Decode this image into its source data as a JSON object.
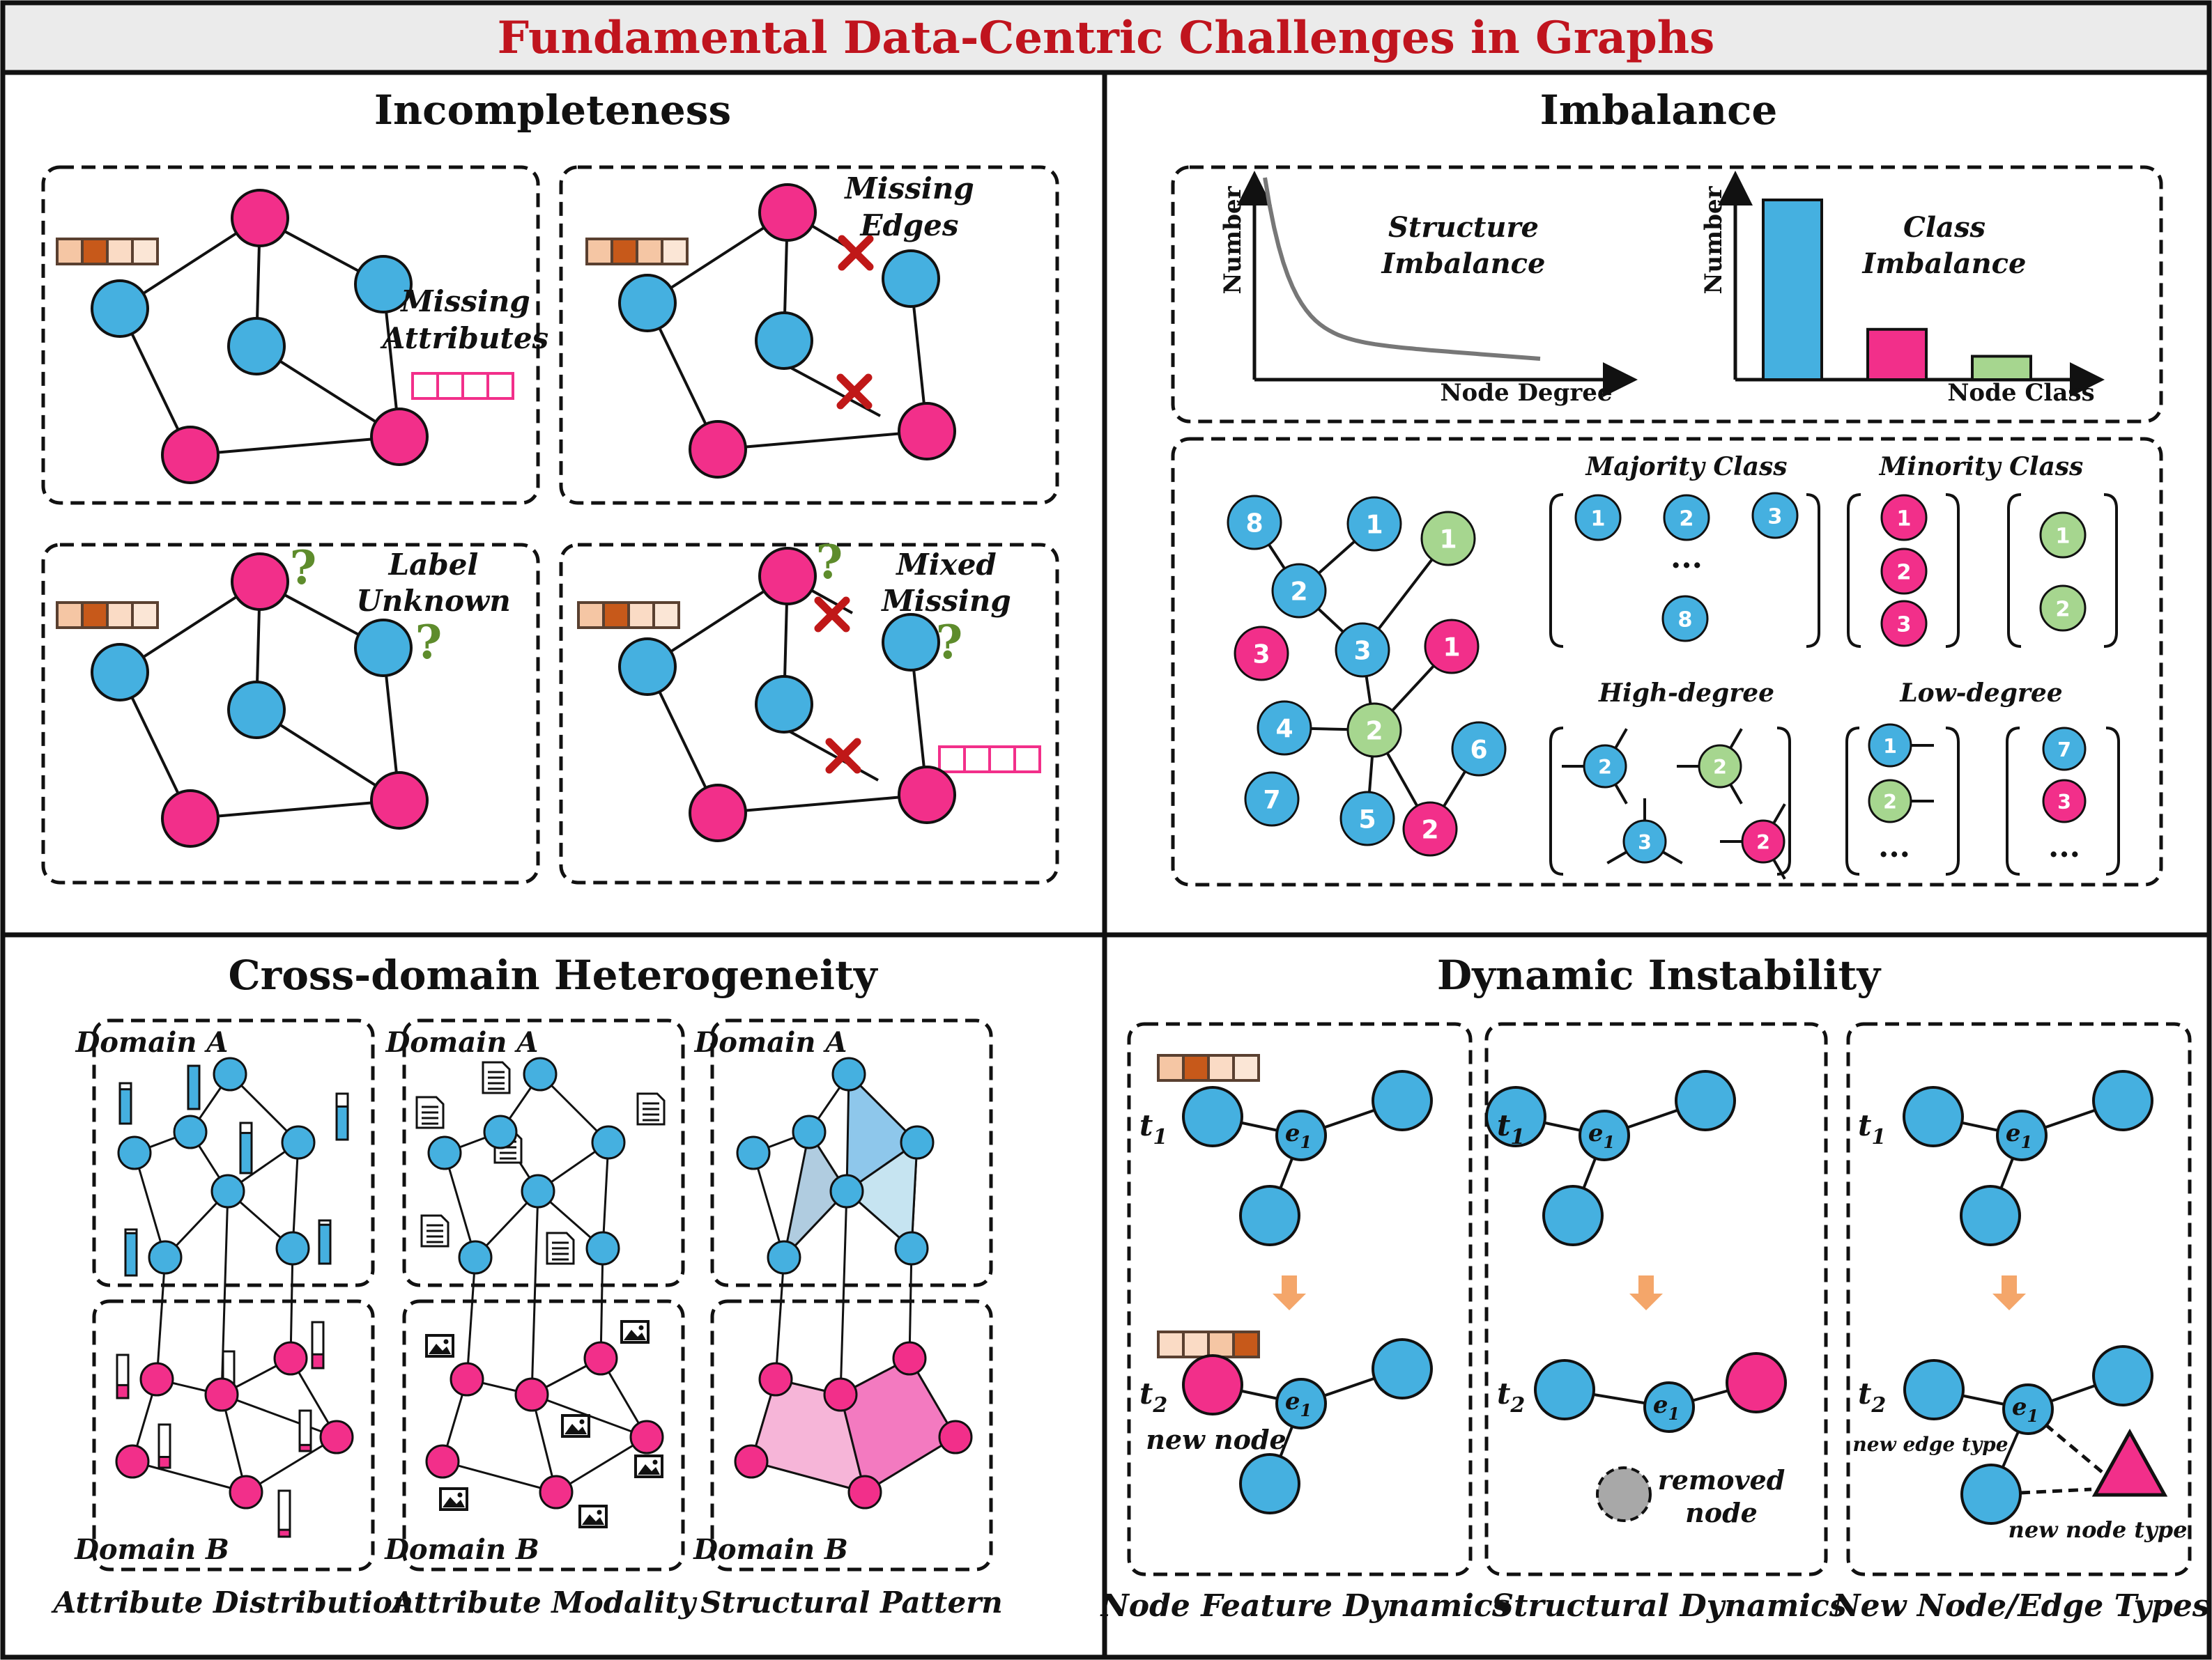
{
  "title": "Fundamental Data-Centric Challenges in Graphs",
  "colors": {
    "blue": "#45b0e0",
    "pink": "#f22f8a",
    "green": "#a6d68f",
    "title_red": "#c0141e",
    "bar_blue": "#45b0e0",
    "bar_pink": "#f22f8a",
    "bar_green": "#a6d68f",
    "cross": "#c01818",
    "question": "#5e8c2c",
    "arrow": "#f4a66a",
    "removed": "#a8a8a8"
  },
  "incompleteness": {
    "heading": "Incompleteness",
    "missing_attributes": [
      "Missing",
      "Attributes"
    ],
    "missing_edges": [
      "Missing",
      "Edges"
    ],
    "label_unknown": [
      "Label",
      "Unknown"
    ],
    "mixed_missing": [
      "Mixed",
      "Missing"
    ],
    "question_mark": "?"
  },
  "imbalance": {
    "heading": "Imbalance",
    "y_axis": "Number",
    "structure": {
      "lines": [
        "Structure",
        "Imbalance"
      ],
      "x_axis": "Node Degree"
    },
    "class": {
      "lines": [
        "Class",
        "Imbalance"
      ],
      "x_axis": "Node Class",
      "bar_values": [
        100,
        28,
        13
      ]
    },
    "majority_class": "Majority Class",
    "minority_class": "Minority Class",
    "high_degree": "High-degree",
    "low_degree": "Low-degree",
    "ellipsis": "..."
  },
  "cross_domain": {
    "heading": "Cross-domain Heterogeneity",
    "domain_a": "Domain A",
    "domain_b": "Domain B",
    "captions": [
      "Attribute Distribution",
      "Attribute Modality",
      "Structural Pattern"
    ]
  },
  "dynamic": {
    "heading": "Dynamic Instability",
    "t1": "t",
    "t2": "t",
    "sub1": "1",
    "sub2": "2",
    "e": "e",
    "new_node": "new node",
    "removed_node": [
      "removed",
      "node"
    ],
    "new_edge_type": "new edge type",
    "new_node_type": "new node type",
    "captions": [
      "Node Feature Dynamics",
      "Structural Dynamics",
      "New Node/Edge Types"
    ]
  }
}
